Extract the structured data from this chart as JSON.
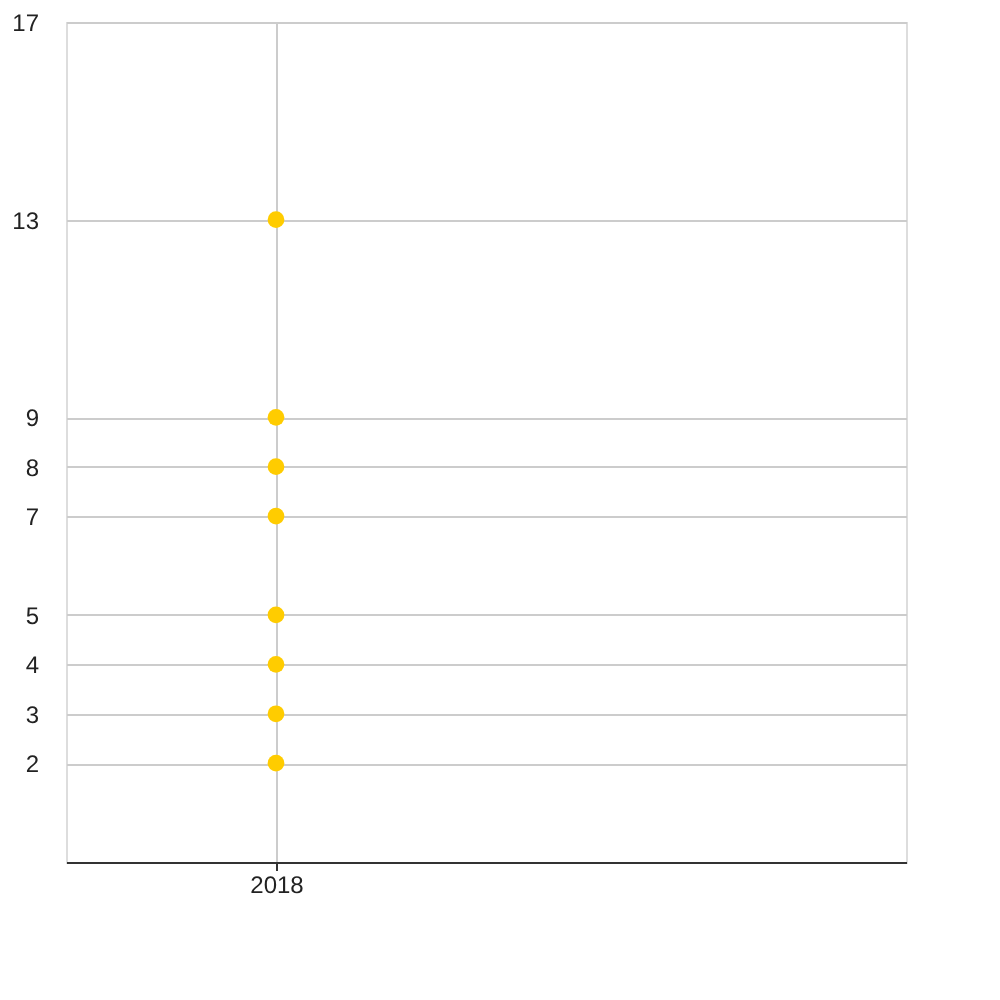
{
  "chart_data": {
    "type": "scatter",
    "categories": [
      "2018",
      null
    ],
    "series": [
      {
        "color": "#ffcc00",
        "values": [
          2,
          null
        ]
      },
      {
        "color": "#ffcc00",
        "values": [
          3,
          null
        ]
      },
      {
        "color": "#ffcc00",
        "values": [
          4,
          null
        ]
      },
      {
        "color": "#ffcc00",
        "values": [
          5,
          null
        ]
      },
      {
        "color": "#ffcc00",
        "values": [
          7,
          null
        ]
      },
      {
        "color": "#ffcc00",
        "values": [
          8,
          null
        ]
      },
      {
        "color": "#ffcc00",
        "values": [
          9,
          null
        ]
      },
      {
        "color": "#ffcc00",
        "values": [
          13,
          null
        ]
      }
    ],
    "marker": "circle",
    "ylim": [
      0,
      17
    ],
    "yticks": [
      2,
      3,
      4,
      5,
      7,
      8,
      9,
      13,
      17
    ],
    "grid": true
  }
}
